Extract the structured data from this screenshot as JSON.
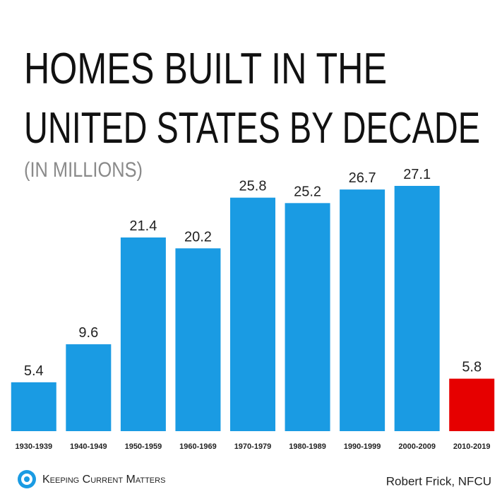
{
  "chart_data": {
    "type": "bar",
    "title": [
      "HOMES BUILT IN THE",
      "UNITED STATES BY DECADE"
    ],
    "subtitle": "(IN MILLIONS)",
    "categories": [
      "1930-1939",
      "1940-1949",
      "1950-1959",
      "1960-1969",
      "1970-1979",
      "1980-1989",
      "1990-1999",
      "2000-2009",
      "2010-2019"
    ],
    "values": [
      5.4,
      9.6,
      21.4,
      20.2,
      25.8,
      25.2,
      26.7,
      27.1,
      5.8
    ],
    "colors": [
      "#1a9be3",
      "#1a9be3",
      "#1a9be3",
      "#1a9be3",
      "#1a9be3",
      "#1a9be3",
      "#1a9be3",
      "#1a9be3",
      "#e60000"
    ],
    "logo": "Keeping Current Matters",
    "source": "Robert Frick, NFCU"
  }
}
